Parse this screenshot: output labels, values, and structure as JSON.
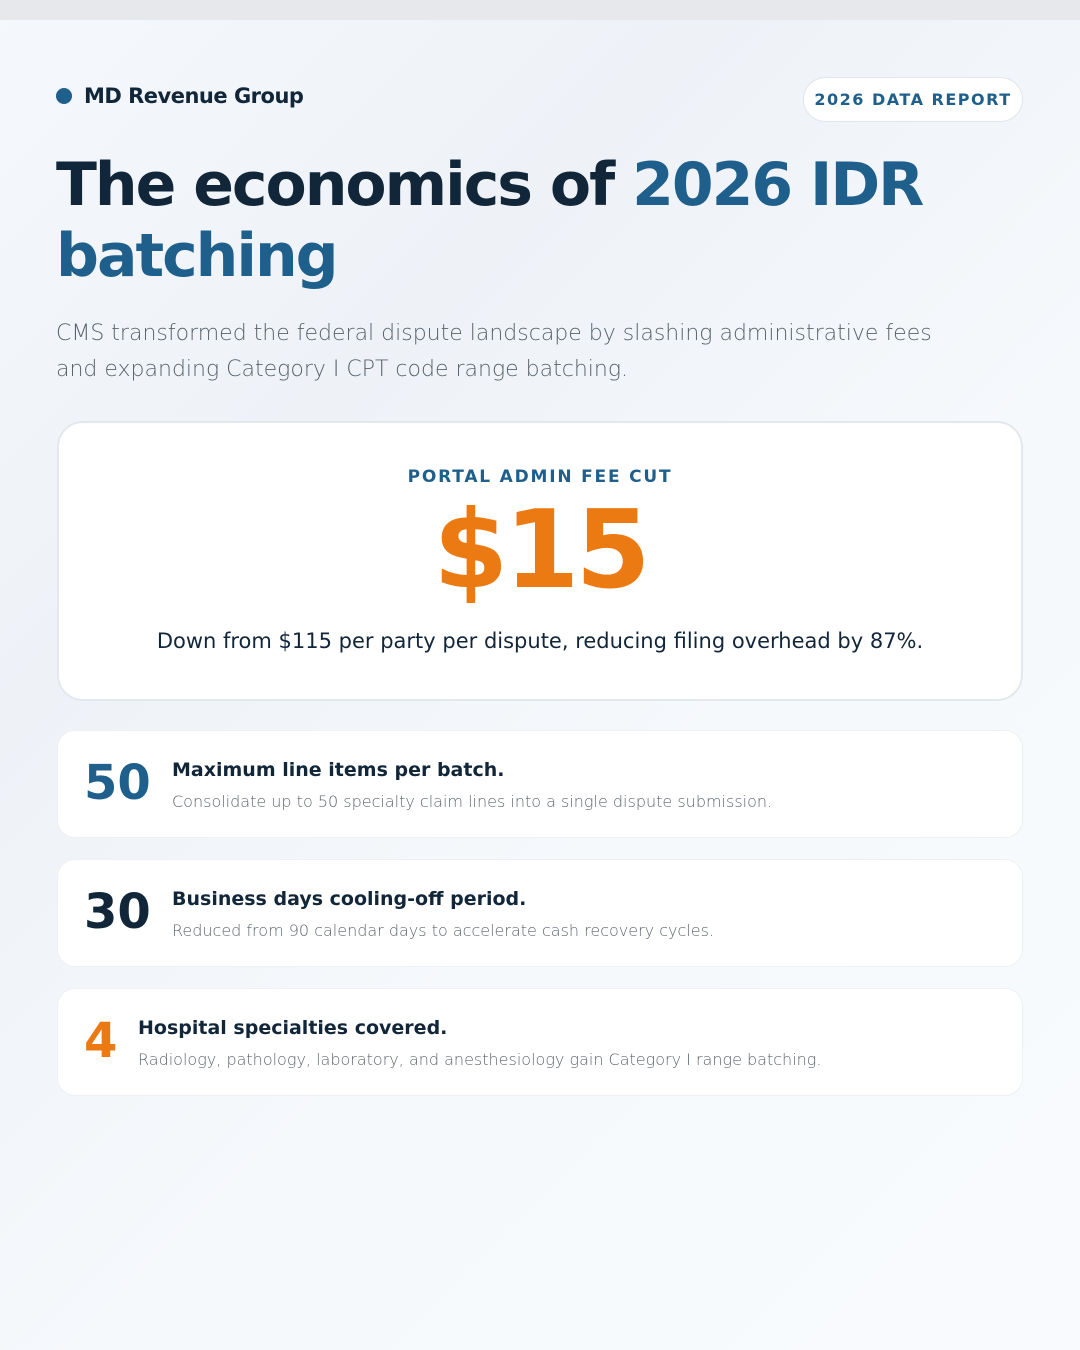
{
  "header": {
    "brand": "MD Revenue Group",
    "badge": "2026 DATA REPORT"
  },
  "title": {
    "lead": "The economics of",
    "highlight": "2026 IDR batching"
  },
  "subtitle": "CMS transformed the federal dispute landscape by slashing administrative fees and expanding Category I CPT code range batching.",
  "hero": {
    "label": "PORTAL ADMIN FEE CUT",
    "value": "$15",
    "description": "Down from $115 per party per dispute, reducing filing overhead by 87%."
  },
  "stats": [
    {
      "value": "50",
      "title": "Maximum line items per batch.",
      "description": "Consolidate up to 50 specialty claim lines into a single dispute submission."
    },
    {
      "value": "30",
      "title": "Business days cooling-off period.",
      "description": "Reduced from 90 calendar days to accelerate cash recovery cycles."
    },
    {
      "value": "4",
      "title": "Hospital specialties covered.",
      "description": "Radiology, pathology, laboratory, and anesthesiology gain Category I range batching."
    }
  ]
}
